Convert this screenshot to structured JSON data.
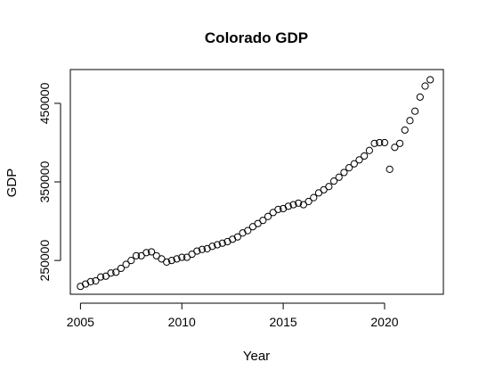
{
  "chart_data": {
    "type": "scatter",
    "title": "Colorado GDP",
    "xlabel": "Year",
    "ylabel": "GDP",
    "xlim": [
      2004.5,
      2022.9
    ],
    "ylim": [
      207000,
      493000
    ],
    "xticks": [
      2005,
      2010,
      2015,
      2020
    ],
    "yticks": [
      250000,
      350000,
      450000
    ],
    "xtick_labels": [
      "2005",
      "2010",
      "2015",
      "2020"
    ],
    "ytick_labels": [
      "250000",
      "350000",
      "450000"
    ],
    "grid": false,
    "legend": "none",
    "marker": "open-circle",
    "series": [
      {
        "x": [
          2005.0,
          2005.25,
          2005.5,
          2005.75,
          2006.0,
          2006.25,
          2006.5,
          2006.75,
          2007.0,
          2007.25,
          2007.5,
          2007.75,
          2008.0,
          2008.25,
          2008.5,
          2008.75,
          2009.0,
          2009.25,
          2009.5,
          2009.75,
          2010.0,
          2010.25,
          2010.5,
          2010.75,
          2011.0,
          2011.25,
          2011.5,
          2011.75,
          2012.0,
          2012.25,
          2012.5,
          2012.75,
          2013.0,
          2013.25,
          2013.5,
          2013.75,
          2014.0,
          2014.25,
          2014.5,
          2014.75,
          2015.0,
          2015.25,
          2015.5,
          2015.75,
          2016.0,
          2016.25,
          2016.5,
          2016.75,
          2017.0,
          2017.25,
          2017.5,
          2017.75,
          2018.0,
          2018.25,
          2018.5,
          2018.75,
          2019.0,
          2019.25,
          2019.5,
          2019.75,
          2020.0,
          2020.25,
          2020.5,
          2020.75,
          2021.0,
          2021.25,
          2021.5,
          2021.75,
          2022.0,
          2022.25
        ],
        "y": [
          217000,
          220000,
          223000,
          224000,
          229000,
          230000,
          234000,
          235000,
          240000,
          245000,
          250000,
          256000,
          256000,
          260000,
          261000,
          256000,
          252000,
          248000,
          250000,
          252000,
          254000,
          254000,
          258000,
          262000,
          264000,
          265000,
          268000,
          270000,
          272000,
          274000,
          277000,
          280000,
          285000,
          288000,
          293000,
          297000,
          301000,
          306000,
          311000,
          315000,
          316000,
          319000,
          321000,
          323000,
          321000,
          325000,
          330000,
          336000,
          340000,
          344000,
          351000,
          356000,
          362000,
          368000,
          373000,
          378000,
          383000,
          390000,
          399000,
          400000,
          400000,
          366000,
          394000,
          399000,
          416000,
          428000,
          440000,
          458000,
          472000,
          480000
        ]
      }
    ]
  }
}
